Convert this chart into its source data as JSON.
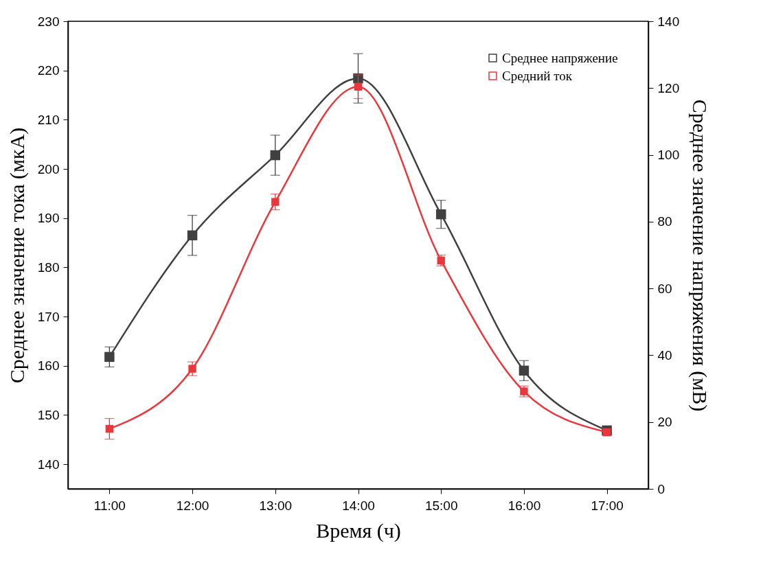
{
  "chart_data": {
    "type": "line",
    "xlabel": "Время (ч)",
    "ylabel": "Среднее значение тока (мкА)",
    "y2label": "Среднее значение напряжения (мВ)",
    "x": [
      11,
      12,
      13,
      14,
      15,
      16,
      17
    ],
    "xlim": [
      10.5,
      17.5
    ],
    "xticks": [
      {
        "value": 11,
        "label": "11:00"
      },
      {
        "value": 12,
        "label": "12:00"
      },
      {
        "value": 13,
        "label": "13:00"
      },
      {
        "value": 14,
        "label": "14:00"
      },
      {
        "value": 15,
        "label": "15:00"
      },
      {
        "value": 16,
        "label": "16:00"
      },
      {
        "value": 17,
        "label": "17:00"
      }
    ],
    "ylim": [
      135,
      230
    ],
    "yticks": [
      140,
      150,
      160,
      170,
      180,
      190,
      200,
      210,
      220,
      230
    ],
    "y2lim": [
      0,
      140
    ],
    "y2ticks": [
      0,
      20,
      40,
      60,
      80,
      100,
      120,
      140
    ],
    "series": [
      {
        "name": "Среднее напряжение",
        "color": "#404040",
        "axis": "y2",
        "values": [
          39.5,
          75.9,
          99.9,
          122.9,
          82.2,
          35.4,
          17.5
        ],
        "errors": [
          3,
          6,
          6,
          7.4,
          4.2,
          3,
          0.6
        ]
      },
      {
        "name": "Средний ток",
        "color": "#e8383d",
        "values": [
          147.2,
          159.4,
          193.3,
          216.7,
          181.4,
          154.8,
          146.5
        ],
        "errors": [
          2.1,
          1.4,
          1.6,
          2.4,
          1.1,
          1.1,
          0.7
        ]
      }
    ],
    "marker": "square",
    "line_style": "solid",
    "legend": "top right",
    "grid": false
  }
}
